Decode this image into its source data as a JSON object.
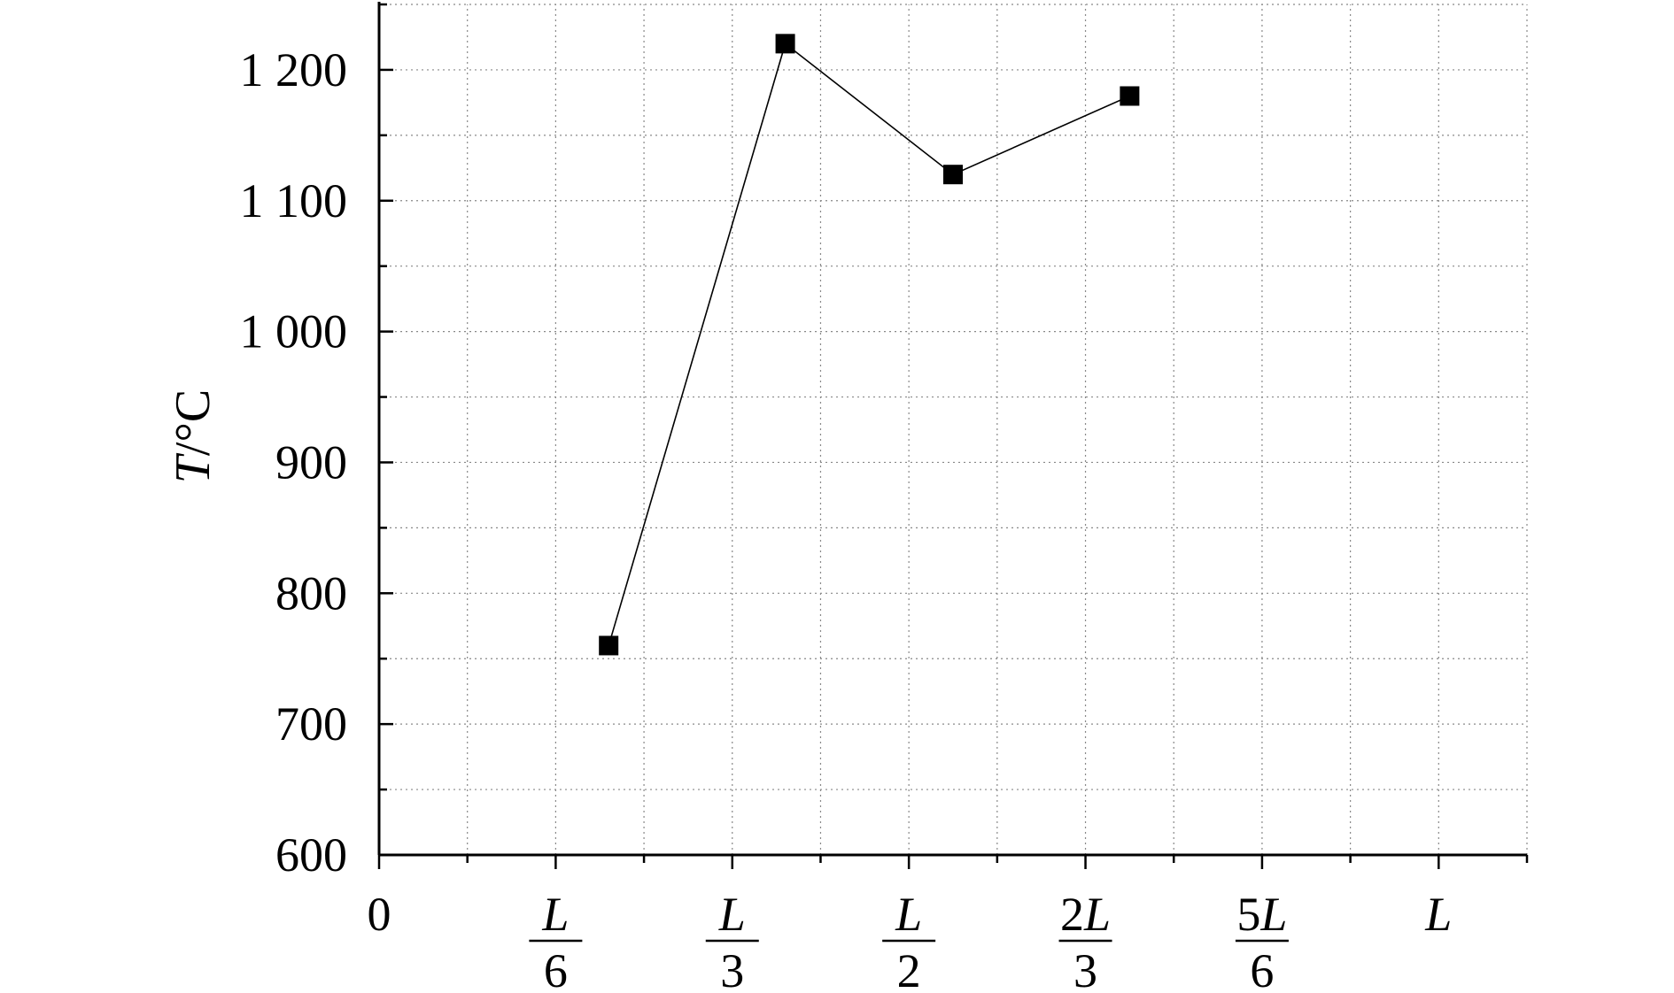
{
  "chart_data": {
    "type": "line",
    "title": "",
    "xlabel": "",
    "ylabel": "T/°C",
    "ylabel_parts": {
      "symbol": "T",
      "unit": "/°C"
    },
    "xlim": [
      0,
      6.5
    ],
    "ylim": [
      600,
      1250
    ],
    "grid": true,
    "legend": "none",
    "colors": {
      "line": "#000000",
      "marker": "#000000",
      "grid": "#888888",
      "axis": "#000000"
    },
    "y_ticks": [
      {
        "value": 600,
        "label": "600"
      },
      {
        "value": 700,
        "label": "700"
      },
      {
        "value": 800,
        "label": "800"
      },
      {
        "value": 900,
        "label": "900"
      },
      {
        "value": 1000,
        "label": "1 000"
      },
      {
        "value": 1100,
        "label": "1 100"
      },
      {
        "value": 1200,
        "label": "1 200"
      }
    ],
    "x_ticks": [
      {
        "value": 0,
        "label": "0"
      },
      {
        "value": 1,
        "numerator": "L",
        "denominator": "6"
      },
      {
        "value": 2,
        "numerator": "L",
        "denominator": "3"
      },
      {
        "value": 3,
        "numerator": "L",
        "denominator": "2"
      },
      {
        "value": 4,
        "numerator": "2L",
        "denominator": "3"
      },
      {
        "value": 5,
        "numerator": "5L",
        "denominator": "6"
      },
      {
        "value": 6,
        "label": "L"
      }
    ],
    "series": [
      {
        "marker": "square",
        "x": [
          1.3,
          2.3,
          3.25,
          4.25
        ],
        "y": [
          760,
          1220,
          1120,
          1180
        ]
      }
    ]
  }
}
